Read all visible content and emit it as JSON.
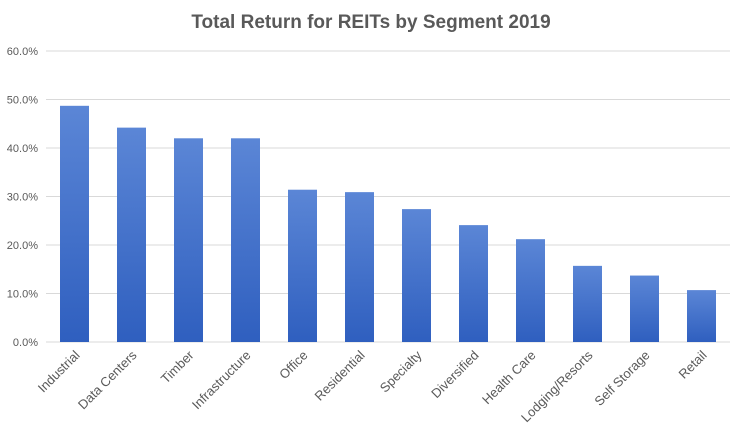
{
  "chart_data": {
    "type": "bar",
    "title": "Total Return for REITs by Segment 2019",
    "xlabel": "",
    "ylabel": "",
    "categories": [
      "Industrial",
      "Data Centers",
      "Timber",
      "Infrastructure",
      "Office",
      "Residential",
      "Specialty",
      "Diversified",
      "Health Care",
      "Lodging/Resorts",
      "Self Storage",
      "Retail"
    ],
    "values": [
      48.7,
      44.2,
      42.0,
      42.0,
      31.4,
      30.9,
      27.4,
      24.1,
      21.2,
      15.7,
      13.7,
      10.7
    ],
    "ylim": [
      0,
      60
    ],
    "yticks": [
      "0.0%",
      "10.0%",
      "20.0%",
      "30.0%",
      "40.0%",
      "50.0%",
      "60.0%"
    ],
    "grid": true,
    "legend": "none",
    "bar_color_top": "#5b86d6",
    "bar_color_bottom": "#2f5fbf"
  }
}
